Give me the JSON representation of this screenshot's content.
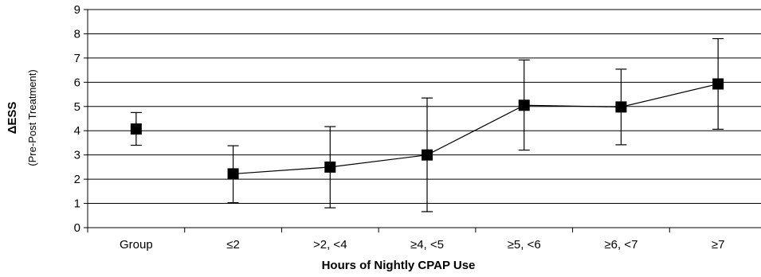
{
  "chart_data": {
    "type": "line",
    "title": "",
    "xlabel": "Hours of Nightly CPAP Use",
    "ylabel": "ΔESS",
    "ylabel_sub": "(Pre-Post Treatment)",
    "ylim": [
      0,
      9
    ],
    "yticks": [
      "0",
      "1",
      "2",
      "3",
      "4",
      "5",
      "6",
      "7",
      "8",
      "9"
    ],
    "grid": true,
    "categories": [
      "Group",
      "≤2",
      ">2, <4",
      "≥4, <5",
      "≥5, <6",
      "≥6, <7",
      "≥7"
    ],
    "series": [
      {
        "values": [
          4.07,
          2.22,
          2.5,
          3.0,
          5.05,
          4.98,
          5.93
        ],
        "error_low": [
          3.4,
          1.03,
          0.82,
          0.66,
          3.2,
          3.42,
          4.06
        ],
        "error_high": [
          4.75,
          3.38,
          4.17,
          5.35,
          6.92,
          6.54,
          7.8
        ],
        "connected_from_index": 1,
        "color": "#000000"
      }
    ]
  }
}
